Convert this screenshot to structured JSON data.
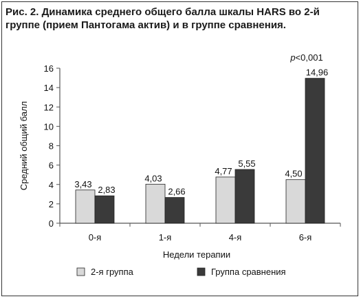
{
  "chart_data": {
    "type": "bar",
    "title": "Рис. 2. Динамика среднего общего балла шкалы HARS во 2-й группе (прием Пантогама актив) и в группе сравнения.",
    "xlabel": "Недели терапии",
    "ylabel": "Средний общий балл",
    "categories": [
      "0-я",
      "1-я",
      "4-я",
      "6-я"
    ],
    "ylim": [
      0,
      16
    ],
    "yticks": [
      0,
      2,
      4,
      6,
      8,
      10,
      12,
      14,
      16
    ],
    "grid": false,
    "legend": "bottom",
    "series": [
      {
        "name": "2-я группа",
        "values": [
          3.43,
          4.03,
          4.77,
          4.5
        ],
        "labels": [
          "3,43",
          "4,03",
          "4,77",
          "4,50"
        ],
        "color": "#d9d9d9"
      },
      {
        "name": "Группа сравнения",
        "values": [
          2.83,
          2.66,
          5.55,
          14.96
        ],
        "labels": [
          "2,83",
          "2,66",
          "5,55",
          "14,96"
        ],
        "color": "#3a3a3a"
      }
    ],
    "annotation": {
      "p_label": "p",
      "rest": "<0,001",
      "category_index": 3
    }
  }
}
